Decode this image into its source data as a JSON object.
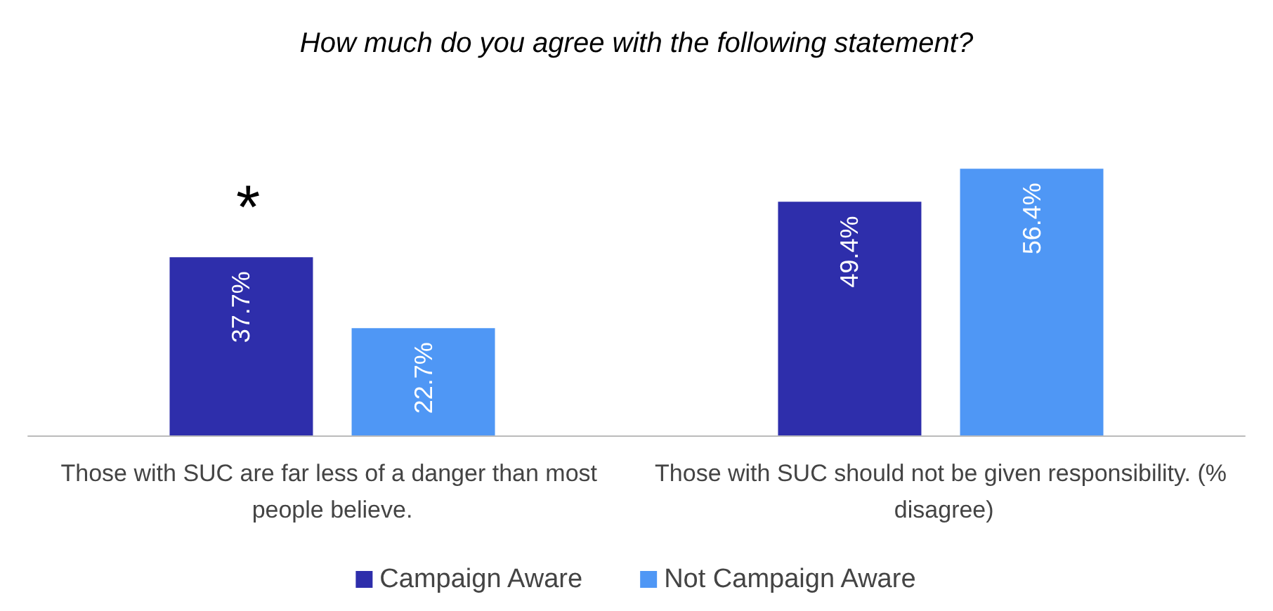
{
  "chart_data": {
    "type": "bar",
    "title": "How much do you agree with the following statement?",
    "categories": [
      "Those with SUC are far less of a danger than most people believe.",
      "Those with SUC should not be given responsibility. (% disagree)"
    ],
    "series": [
      {
        "name": "Campaign Aware",
        "color": "#2e2eab",
        "values": [
          37.7,
          49.4
        ],
        "value_labels": [
          "37.7%",
          "49.4%"
        ]
      },
      {
        "name": "Not Campaign Aware",
        "color": "#4f97f5",
        "values": [
          22.7,
          56.4
        ],
        "value_labels": [
          "22.7%",
          "56.4%"
        ]
      }
    ],
    "legend": "bottom",
    "annotations": [
      "*"
    ]
  }
}
